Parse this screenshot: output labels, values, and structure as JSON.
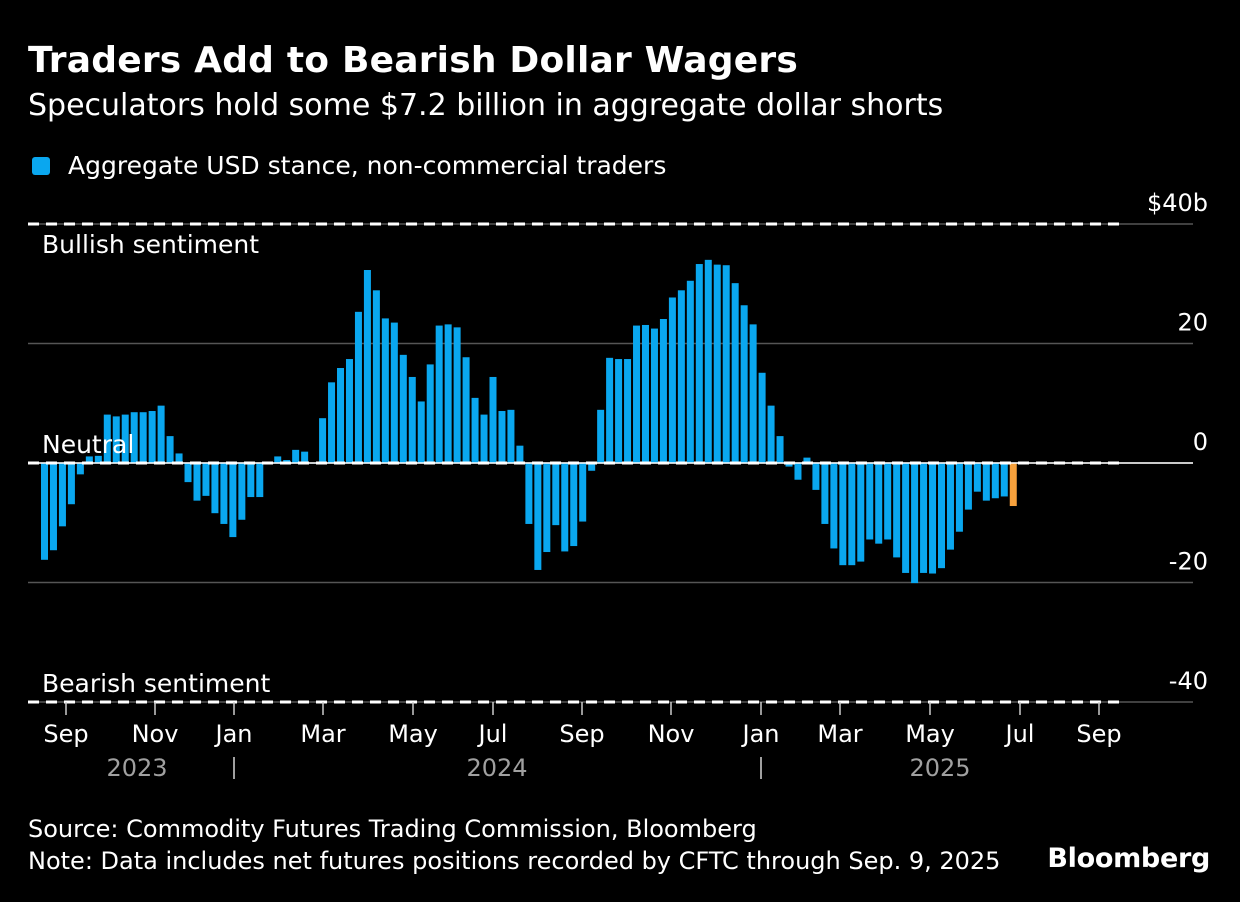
{
  "title": "Traders Add to Bearish Dollar Wagers",
  "subtitle": "Speculators hold some $7.2 billion in aggregate dollar shorts",
  "footer": {
    "source": "Source: Commodity Futures Trading Commission, Bloomberg",
    "note": "Note: Data includes net futures positions recorded by CFTC through Sep. 9, 2025",
    "brand": "Bloomberg"
  },
  "colors": {
    "background": "#000000",
    "series": "#0aa7ef",
    "latest": "#f7a13c",
    "grid": "#555555",
    "text": "#ffffff",
    "year_label": "#a0a0a0"
  },
  "chart_data": {
    "type": "bar",
    "legend": "Aggregate USD stance, non-commercial traders",
    "legend_position": "top-left",
    "unit": "$b",
    "ylim": [
      -40,
      40
    ],
    "y_ticks": [
      {
        "value": 40,
        "label": "$40b"
      },
      {
        "value": 20,
        "label": "20"
      },
      {
        "value": 0,
        "label": "0"
      },
      {
        "value": -20,
        "label": "-20"
      },
      {
        "value": -40,
        "label": "-40"
      }
    ],
    "reference_lines": [
      {
        "value": 40,
        "label": "Bullish sentiment",
        "style": "dashed"
      },
      {
        "value": 0,
        "label": "Neutral",
        "style": "dashed"
      },
      {
        "value": -40,
        "label": "Bearish sentiment",
        "style": "dashed"
      }
    ],
    "x_ticks": [
      "Sep",
      "Nov",
      "Jan",
      "Mar",
      "May",
      "Jul",
      "Sep",
      "Nov",
      "Jan",
      "Mar",
      "May",
      "Jul",
      "Sep"
    ],
    "years": [
      "2023",
      "2024",
      "2025"
    ],
    "grid": true,
    "series": [
      {
        "name": "Aggregate USD stance, non-commercial traders",
        "start": "2023-08-01",
        "frequency": "weekly",
        "values": [
          -16.2,
          -14.6,
          -10.6,
          -6.9,
          -1.9,
          1.1,
          1.2,
          8.1,
          7.8,
          8.1,
          8.5,
          8.5,
          8.7,
          9.6,
          4.5,
          1.6,
          -3.2,
          -6.3,
          -5.5,
          -8.4,
          -10.2,
          -12.4,
          -9.5,
          -5.7,
          -5.7,
          0.2,
          1.1,
          0.5,
          2.2,
          1.9,
          0.0,
          7.5,
          13.5,
          15.9,
          17.4,
          25.3,
          32.3,
          28.9,
          24.2,
          23.5,
          18.1,
          14.4,
          10.3,
          16.5,
          23.0,
          23.2,
          22.7,
          17.7,
          10.9,
          8.1,
          14.4,
          8.7,
          8.9,
          2.9,
          -10.2,
          -17.9,
          -14.9,
          -10.4,
          -14.8,
          -13.9,
          -9.8,
          -1.3,
          8.9,
          17.6,
          17.4,
          17.4,
          23.0,
          23.1,
          22.5,
          24.1,
          27.7,
          28.9,
          30.5,
          33.3,
          34.0,
          33.2,
          33.1,
          30.1,
          26.4,
          23.2,
          15.1,
          9.6,
          4.5,
          -0.6,
          -2.8,
          0.9,
          -4.5,
          -10.2,
          -14.3,
          -17.1,
          -17.1,
          -16.5,
          -12.8,
          -13.5,
          -12.8,
          -15.8,
          -18.4,
          -20.1,
          -18.4,
          -18.5,
          -17.6,
          -14.5,
          -11.5,
          -7.8,
          -4.8,
          -6.3,
          -5.9,
          -5.6,
          -7.2
        ]
      }
    ],
    "highlight_last": true
  }
}
